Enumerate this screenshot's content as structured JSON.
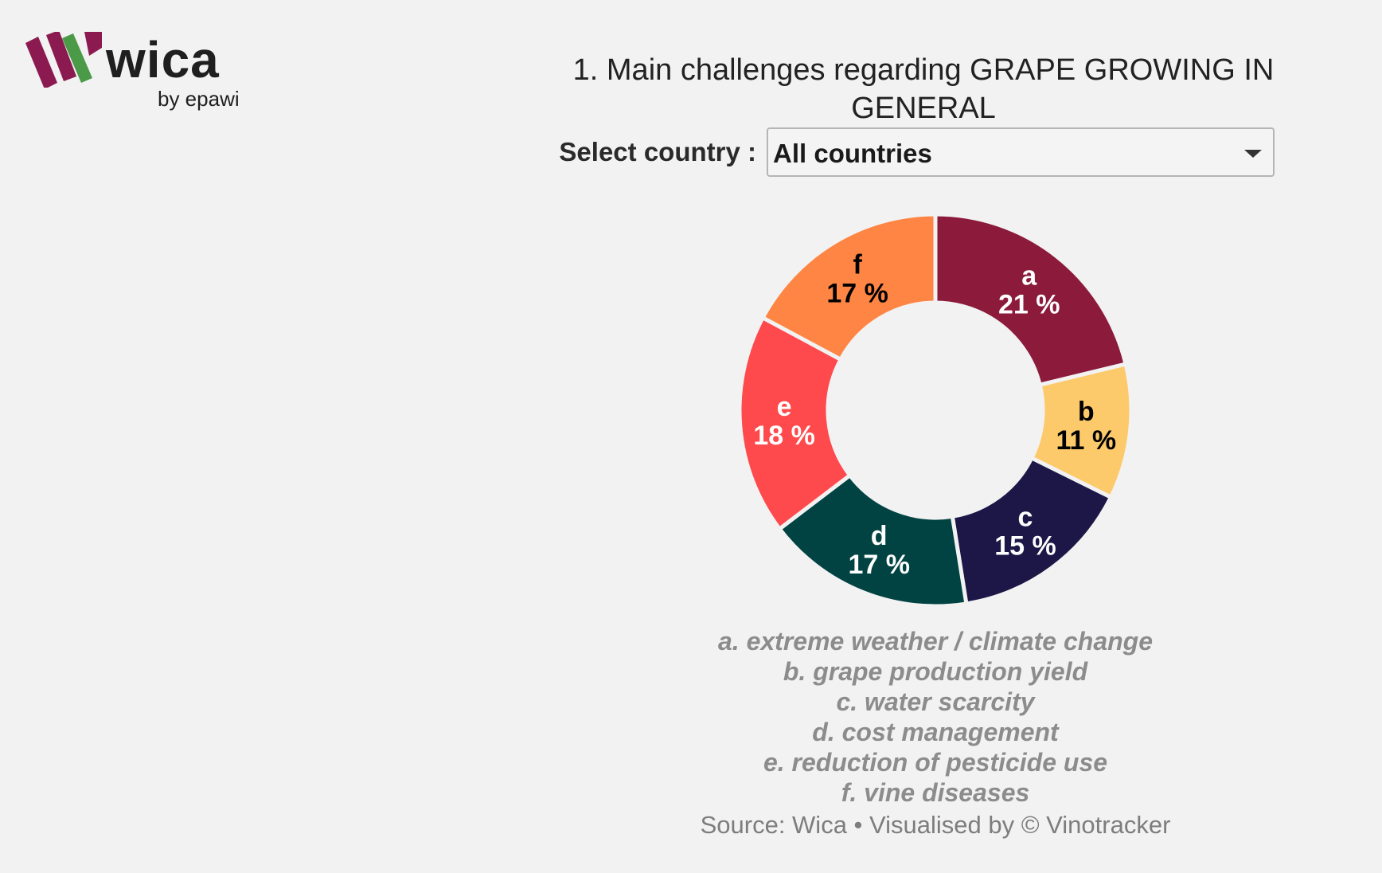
{
  "logo": {
    "name": "wica",
    "tagline": "by epawi"
  },
  "title": "1. Main challenges regarding GRAPE GROWING IN GENERAL",
  "filter": {
    "label": "Select country :",
    "selected": "All countries"
  },
  "chart_data": {
    "type": "pie",
    "title": "1. Main challenges regarding GRAPE GROWING IN GENERAL",
    "categories": [
      "a",
      "b",
      "c",
      "d",
      "e",
      "f"
    ],
    "values": [
      21,
      11,
      15,
      17,
      18,
      17
    ],
    "labels": [
      "21 %",
      "11 %",
      "15 %",
      "17 %",
      "18 %",
      "17 %"
    ],
    "colors": [
      "#8b1a3b",
      "#fdca6b",
      "#1c1747",
      "#014343",
      "#fe4a4c",
      "#fe8544"
    ],
    "label_colors": [
      "#ffffff",
      "#000000",
      "#ffffff",
      "#ffffff",
      "#ffffff",
      "#000000"
    ],
    "donut": true,
    "legend": [
      "a. extreme weather / climate change",
      "b. grape production yield",
      "c. water scarcity",
      "d. cost management",
      "e. reduction of pesticide use",
      "f. vine diseases"
    ]
  },
  "source": "Source: Wica • Visualised by © Vinotracker"
}
